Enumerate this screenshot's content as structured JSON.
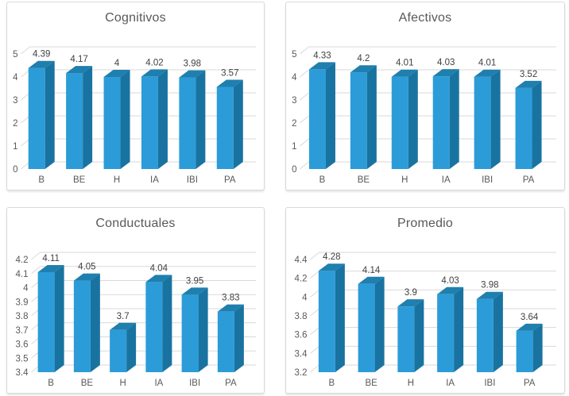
{
  "theme": {
    "bar_front": "#2C9CD8",
    "bar_top": "#1F7FAE",
    "bar_side": "#1973A1",
    "grid_color": "#D9D9D9",
    "axis_text_color": "#595959",
    "value_text_color": "#404040",
    "title_color": "#595959",
    "card_border": "#D9D9D9",
    "background": "#FFFFFF"
  },
  "chart_data": [
    {
      "type": "bar",
      "style": "3d-column",
      "title": "Cognitivos",
      "categories": [
        "B",
        "BE",
        "H",
        "IA",
        "IBI",
        "PA"
      ],
      "values": [
        4.39,
        4.17,
        4,
        4.02,
        3.98,
        3.57
      ],
      "value_labels": [
        "4.39",
        "4.17",
        "4",
        "4.02",
        "3.98",
        "3.57"
      ],
      "ylim": [
        0,
        5
      ],
      "ytick_labels": [
        "0",
        "1",
        "2",
        "3",
        "4",
        "5"
      ],
      "xlabel": "",
      "ylabel": "",
      "grid": true,
      "legend": false
    },
    {
      "type": "bar",
      "style": "3d-column",
      "title": "Afectivos",
      "categories": [
        "B",
        "BE",
        "H",
        "IA",
        "IBI",
        "PA"
      ],
      "values": [
        4.33,
        4.2,
        4.01,
        4.03,
        4.01,
        3.52
      ],
      "value_labels": [
        "4.33",
        "4.2",
        "4.01",
        "4.03",
        "4.01",
        "3.52"
      ],
      "ylim": [
        0,
        5
      ],
      "ytick_labels": [
        "0",
        "1",
        "2",
        "3",
        "4",
        "5"
      ],
      "xlabel": "",
      "ylabel": "",
      "grid": true,
      "legend": false
    },
    {
      "type": "bar",
      "style": "3d-column",
      "title": "Conductuales",
      "categories": [
        "B",
        "BE",
        "H",
        "IA",
        "IBI",
        "PA"
      ],
      "values": [
        4.11,
        4.05,
        3.7,
        4.04,
        3.95,
        3.83
      ],
      "value_labels": [
        "4.11",
        "4.05",
        "3.7",
        "4.04",
        "3.95",
        "3.83"
      ],
      "ylim": [
        3.4,
        4.2
      ],
      "ytick_labels": [
        "3.4",
        "3.5",
        "3.6",
        "3.7",
        "3.8",
        "3.9",
        "4",
        "4.1",
        "4.2"
      ],
      "xlabel": "",
      "ylabel": "",
      "grid": true,
      "legend": false
    },
    {
      "type": "bar",
      "style": "3d-column",
      "title": "Promedio",
      "categories": [
        "B",
        "BE",
        "H",
        "IA",
        "IBI",
        "PA"
      ],
      "values": [
        4.28,
        4.14,
        3.9,
        4.03,
        3.98,
        3.64
      ],
      "value_labels": [
        "4.28",
        "4.14",
        "3.9",
        "4.03",
        "3.98",
        "3.64"
      ],
      "ylim": [
        3.2,
        4.4
      ],
      "ytick_labels": [
        "3.2",
        "3.4",
        "3.6",
        "3.8",
        "4",
        "4.2",
        "4.4"
      ],
      "xlabel": "",
      "ylabel": "",
      "grid": true,
      "legend": false
    }
  ]
}
